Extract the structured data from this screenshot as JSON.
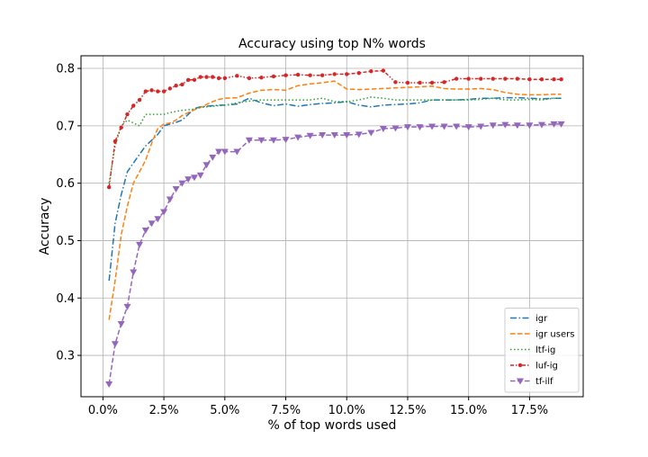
{
  "chart_data": {
    "type": "line",
    "title": "Accuracy using top N% words",
    "xlabel": "% of top words used",
    "ylabel": "Accuracy",
    "xlim": [
      -0.9,
      19.7
    ],
    "ylim": [
      0.228,
      0.822
    ],
    "grid": true,
    "legend_position": "lower-right",
    "x_ticks": [
      0.0,
      2.5,
      5.0,
      7.5,
      10.0,
      12.5,
      15.0,
      17.5
    ],
    "x_tick_labels": [
      "0.0%",
      "2.5%",
      "5.0%",
      "7.5%",
      "10.0%",
      "12.5%",
      "15.0%",
      "17.5%"
    ],
    "y_ticks": [
      0.3,
      0.4,
      0.5,
      0.6,
      0.7,
      0.8
    ],
    "y_tick_labels": [
      "0.3",
      "0.4",
      "0.5",
      "0.6",
      "0.7",
      "0.8"
    ],
    "x": [
      0.25,
      0.5,
      0.75,
      1.0,
      1.25,
      1.5,
      1.75,
      2.0,
      2.25,
      2.5,
      2.75,
      3.0,
      3.25,
      3.5,
      3.75,
      4.0,
      4.25,
      4.5,
      4.75,
      5.0,
      5.5,
      6.0,
      6.5,
      7.0,
      7.5,
      8.0,
      8.5,
      9.0,
      9.5,
      10.0,
      10.5,
      11.0,
      11.5,
      12.0,
      12.5,
      13.0,
      13.5,
      14.0,
      14.5,
      15.0,
      15.5,
      16.0,
      16.5,
      17.0,
      17.5,
      18.0,
      18.5,
      18.8
    ],
    "series": [
      {
        "name": "igr",
        "color": "#1f77b4",
        "dash": "dashdot",
        "marker": "none",
        "values": [
          0.43,
          0.53,
          0.58,
          0.62,
          0.635,
          0.65,
          0.665,
          0.675,
          0.685,
          0.7,
          0.703,
          0.706,
          0.71,
          0.72,
          0.73,
          0.733,
          0.734,
          0.735,
          0.736,
          0.736,
          0.738,
          0.748,
          0.74,
          0.735,
          0.738,
          0.734,
          0.737,
          0.739,
          0.74,
          0.742,
          0.736,
          0.733,
          0.736,
          0.737,
          0.738,
          0.74,
          0.745,
          0.745,
          0.745,
          0.746,
          0.748,
          0.748,
          0.749,
          0.749,
          0.748,
          0.747,
          0.748,
          0.748
        ]
      },
      {
        "name": "igr users",
        "color": "#ff7f0e",
        "dash": "dashed",
        "marker": "none",
        "values": [
          0.362,
          0.43,
          0.51,
          0.56,
          0.6,
          0.62,
          0.64,
          0.67,
          0.695,
          0.703,
          0.705,
          0.71,
          0.718,
          0.723,
          0.728,
          0.732,
          0.737,
          0.742,
          0.746,
          0.748,
          0.749,
          0.757,
          0.762,
          0.763,
          0.762,
          0.77,
          0.773,
          0.775,
          0.778,
          0.764,
          0.763,
          0.764,
          0.765,
          0.766,
          0.767,
          0.768,
          0.769,
          0.765,
          0.764,
          0.764,
          0.765,
          0.763,
          0.758,
          0.755,
          0.754,
          0.754,
          0.755,
          0.755
        ]
      },
      {
        "name": "ltf-ig",
        "color": "#2ca02c",
        "dash": "dotted",
        "marker": "none",
        "values": [
          0.6,
          0.665,
          0.7,
          0.71,
          0.705,
          0.7,
          0.72,
          0.72,
          0.72,
          0.72,
          0.723,
          0.725,
          0.727,
          0.728,
          0.729,
          0.732,
          0.733,
          0.734,
          0.735,
          0.736,
          0.74,
          0.743,
          0.745,
          0.745,
          0.745,
          0.745,
          0.745,
          0.748,
          0.742,
          0.742,
          0.745,
          0.75,
          0.748,
          0.745,
          0.745,
          0.745,
          0.745,
          0.745,
          0.745,
          0.745,
          0.746,
          0.748,
          0.745,
          0.745,
          0.746,
          0.745,
          0.748,
          0.748
        ]
      },
      {
        "name": "luf-ig",
        "color": "#d62728",
        "dash": "dashdotdot",
        "marker": "dot",
        "values": [
          0.593,
          0.673,
          0.697,
          0.72,
          0.735,
          0.745,
          0.76,
          0.762,
          0.76,
          0.76,
          0.765,
          0.77,
          0.772,
          0.78,
          0.78,
          0.785,
          0.785,
          0.785,
          0.783,
          0.783,
          0.787,
          0.783,
          0.784,
          0.786,
          0.788,
          0.789,
          0.788,
          0.788,
          0.79,
          0.79,
          0.792,
          0.795,
          0.796,
          0.776,
          0.775,
          0.775,
          0.775,
          0.776,
          0.782,
          0.782,
          0.782,
          0.782,
          0.782,
          0.782,
          0.781,
          0.781,
          0.781,
          0.781
        ]
      },
      {
        "name": "tf-ilf",
        "color": "#9467bd",
        "dash": "dashed",
        "marker": "triangle-down",
        "values": [
          0.25,
          0.32,
          0.355,
          0.385,
          0.445,
          0.493,
          0.518,
          0.53,
          0.538,
          0.55,
          0.572,
          0.59,
          0.6,
          0.607,
          0.61,
          0.614,
          0.632,
          0.645,
          0.655,
          0.655,
          0.655,
          0.675,
          0.675,
          0.675,
          0.676,
          0.68,
          0.683,
          0.684,
          0.684,
          0.684,
          0.685,
          0.688,
          0.695,
          0.696,
          0.698,
          0.698,
          0.699,
          0.699,
          0.699,
          0.698,
          0.699,
          0.701,
          0.702,
          0.701,
          0.701,
          0.702,
          0.703,
          0.703
        ]
      }
    ]
  }
}
